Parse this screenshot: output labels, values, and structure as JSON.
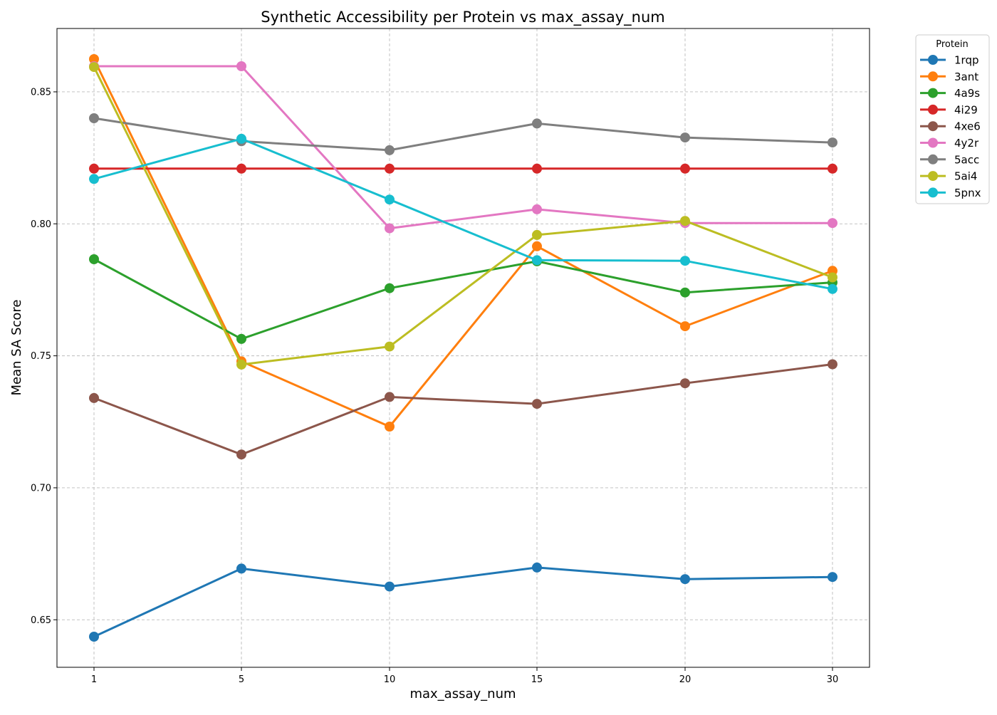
{
  "chart_data": {
    "type": "line",
    "title": "Synthetic Accessibility per Protein vs max_assay_num",
    "xlabel": "max_assay_num",
    "ylabel": "Mean SA Score",
    "categories": [
      "1",
      "5",
      "10",
      "15",
      "20",
      "30"
    ],
    "yticks": [
      "0.65",
      "0.70",
      "0.75",
      "0.80",
      "0.85"
    ],
    "ylim": [
      0.632,
      0.874
    ],
    "grid": true,
    "legend": {
      "title": "Protein",
      "placement": "outside-top-right"
    },
    "series": [
      {
        "name": "1rqp",
        "color": "#1f77b4",
        "values": [
          0.6436,
          0.6694,
          0.6626,
          0.6698,
          0.6654,
          0.6662
        ]
      },
      {
        "name": "3ant",
        "color": "#ff7f0e",
        "values": [
          0.8624,
          0.7479,
          0.7232,
          0.7915,
          0.7612,
          0.7822
        ]
      },
      {
        "name": "4a9s",
        "color": "#2ca02c",
        "values": [
          0.7866,
          0.7564,
          0.7756,
          0.7858,
          0.774,
          0.7778
        ]
      },
      {
        "name": "4i29",
        "color": "#d62728",
        "values": [
          0.8209,
          0.8209,
          0.8209,
          0.8209,
          0.8209,
          0.8209
        ]
      },
      {
        "name": "4xe6",
        "color": "#8c564b",
        "values": [
          0.734,
          0.7126,
          0.7344,
          0.7318,
          0.7396,
          0.7468
        ]
      },
      {
        "name": "4y2r",
        "color": "#e377c2",
        "values": [
          0.8597,
          0.8597,
          0.7983,
          0.8055,
          0.8003,
          0.8003
        ]
      },
      {
        "name": "5acc",
        "color": "#7f7f7f",
        "values": [
          0.84,
          0.8313,
          0.8279,
          0.838,
          0.8327,
          0.8308
        ]
      },
      {
        "name": "5ai4",
        "color": "#bcbd22",
        "values": [
          0.8594,
          0.7467,
          0.7535,
          0.7958,
          0.8011,
          0.7797
        ]
      },
      {
        "name": "5pnx",
        "color": "#17becf",
        "values": [
          0.817,
          0.8322,
          0.8092,
          0.7862,
          0.786,
          0.7753
        ]
      }
    ]
  }
}
